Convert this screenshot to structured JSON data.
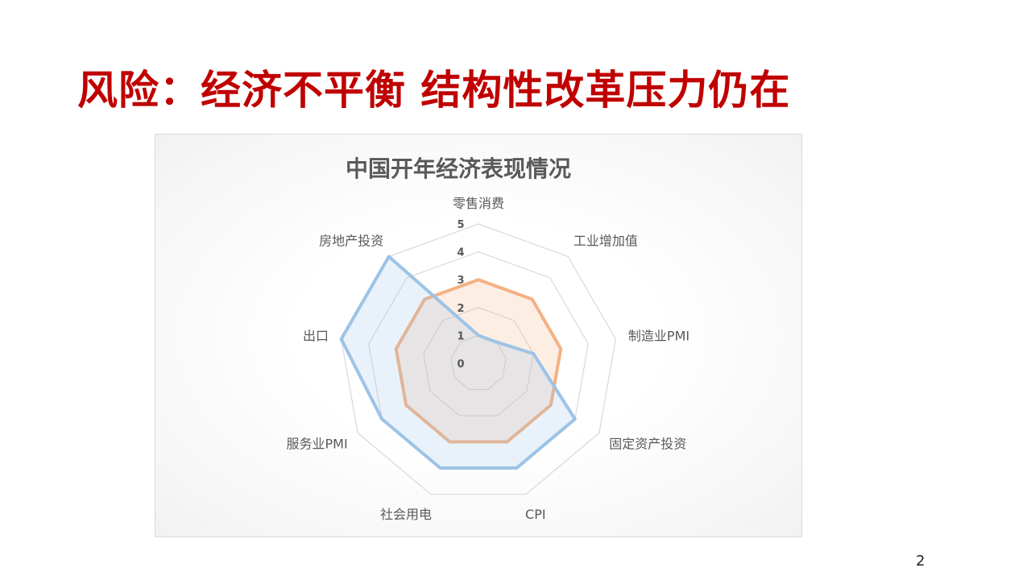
{
  "slide": {
    "title": "风险：经济不平衡 结构性改革压力仍在",
    "page_number": "2"
  },
  "chart_data": {
    "type": "radar",
    "title": "中国开年经济表现情况",
    "categories": [
      "零售消费",
      "工业增加值",
      "制造业PMI",
      "固定资产投资",
      "CPI",
      "社会用电",
      "服务业PMI",
      "出口",
      "房地产投资"
    ],
    "rlim": [
      0,
      5
    ],
    "ticks": [
      "0",
      "1",
      "2",
      "3",
      "4",
      "5"
    ],
    "grid": true,
    "series": [
      {
        "values": [
          3,
          3,
          3,
          3,
          3,
          3,
          3,
          3,
          3
        ],
        "color": "#f4b183"
      },
      {
        "values": [
          1,
          1,
          2,
          4,
          4,
          4,
          4,
          5,
          5
        ],
        "color": "#9dc3e6"
      }
    ]
  }
}
